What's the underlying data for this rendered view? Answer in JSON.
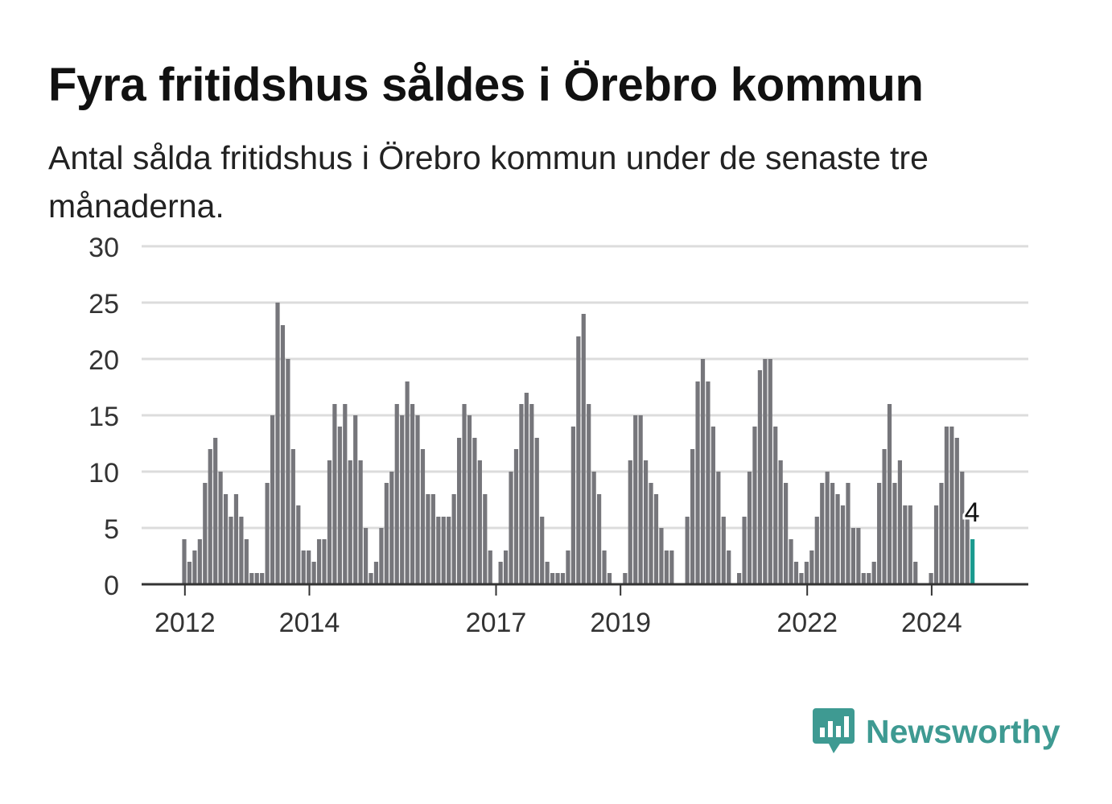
{
  "title": "Fyra fritidshus såldes i Örebro kommun",
  "subtitle": "Antal sålda fritidshus i Örebro kommun under de senaste tre månaderna.",
  "brand": {
    "name": "Newsworthy",
    "color": "#3e9a92",
    "icon": "newsworthy-bar-chart-icon"
  },
  "chart_data": {
    "type": "bar",
    "start": {
      "year": 2011,
      "month": 1
    },
    "ylim": [
      0,
      30
    ],
    "yticks": [
      0,
      5,
      10,
      15,
      20,
      25,
      30
    ],
    "xticks": [
      "2012",
      "2014",
      "2017",
      "2019",
      "2022",
      "2024"
    ],
    "bar_color": "#76767b",
    "highlight_color": "#1a9a8f",
    "highlight_label": "4",
    "grid": true,
    "values": [
      0,
      0,
      0,
      0,
      0,
      0,
      0,
      0,
      0,
      0,
      0,
      0,
      4,
      2,
      3,
      4,
      9,
      12,
      13,
      10,
      8,
      6,
      8,
      6,
      4,
      1,
      1,
      1,
      9,
      15,
      25,
      23,
      20,
      12,
      7,
      3,
      3,
      2,
      4,
      4,
      11,
      16,
      14,
      16,
      11,
      15,
      11,
      5,
      1,
      2,
      5,
      9,
      10,
      16,
      15,
      18,
      16,
      15,
      12,
      8,
      8,
      6,
      6,
      6,
      8,
      13,
      16,
      15,
      13,
      11,
      8,
      3,
      0,
      2,
      3,
      10,
      12,
      16,
      17,
      16,
      13,
      6,
      2,
      1,
      1,
      1,
      3,
      14,
      22,
      24,
      16,
      10,
      8,
      3,
      1,
      0,
      0,
      1,
      11,
      15,
      15,
      11,
      9,
      8,
      5,
      3,
      3,
      0,
      0,
      6,
      12,
      18,
      20,
      18,
      14,
      10,
      6,
      3,
      0,
      1,
      6,
      10,
      14,
      19,
      20,
      20,
      14,
      11,
      9,
      4,
      2,
      1,
      2,
      3,
      6,
      9,
      10,
      9,
      8,
      7,
      9,
      5,
      5,
      1,
      1,
      2,
      9,
      12,
      16,
      9,
      11,
      7,
      7,
      2,
      0,
      0,
      1,
      7,
      9,
      14,
      14,
      13,
      10,
      6,
      4
    ]
  }
}
